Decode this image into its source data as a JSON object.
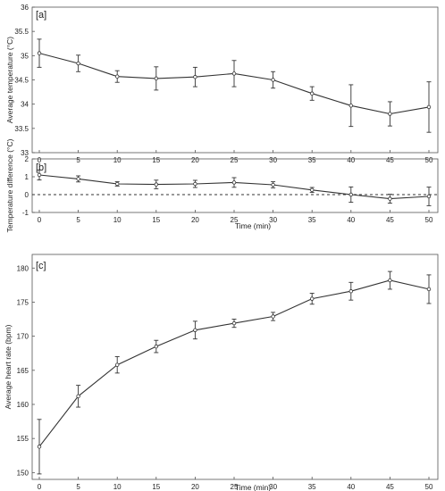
{
  "chart_data": [
    {
      "type": "line",
      "panel_label": "[a]",
      "xlabel": "",
      "ylabel": "Average temperature (°C)",
      "xlim": [
        0,
        50
      ],
      "ylim": [
        33,
        36
      ],
      "xticks": [
        0,
        5,
        10,
        15,
        20,
        25,
        30,
        35,
        40,
        45,
        50
      ],
      "yticks": [
        33,
        33.5,
        34,
        34.5,
        35,
        35.5,
        36
      ],
      "ytick_labels": [
        "33",
        "33.5",
        "34",
        "34.5",
        "35",
        "35.5",
        "36"
      ],
      "x": [
        0,
        5,
        10,
        15,
        20,
        25,
        30,
        35,
        40,
        45,
        50
      ],
      "values": [
        35.05,
        34.84,
        34.57,
        34.53,
        34.56,
        34.63,
        34.5,
        34.22,
        33.97,
        33.8,
        33.94
      ],
      "error": [
        0.29,
        0.17,
        0.12,
        0.24,
        0.2,
        0.27,
        0.17,
        0.14,
        0.43,
        0.25,
        0.52
      ],
      "grid": false,
      "legend": "none"
    },
    {
      "type": "line",
      "panel_label": "[b]",
      "xlabel": "Time (min)",
      "ylabel": "Temperature difference (°C)",
      "xlim": [
        0,
        50
      ],
      "ylim": [
        -1,
        2
      ],
      "xticks": [
        0,
        5,
        10,
        15,
        20,
        25,
        30,
        35,
        40,
        45,
        50
      ],
      "yticks": [
        -1,
        0,
        1,
        2
      ],
      "ytick_labels": [
        "-1",
        "0",
        "1",
        "2"
      ],
      "x": [
        0,
        5,
        10,
        15,
        20,
        25,
        30,
        35,
        40,
        45,
        50
      ],
      "values": [
        1.1,
        0.88,
        0.6,
        0.57,
        0.6,
        0.68,
        0.55,
        0.26,
        0.0,
        -0.23,
        -0.1
      ],
      "error": [
        0.28,
        0.17,
        0.12,
        0.24,
        0.2,
        0.27,
        0.17,
        0.14,
        0.43,
        0.25,
        0.52
      ],
      "reference_line": 0,
      "grid": false,
      "legend": "none"
    },
    {
      "type": "line",
      "panel_label": "[c]",
      "xlabel": "Time (min)",
      "ylabel": "Average heart rate (bpm)",
      "xlim": [
        0,
        50
      ],
      "ylim": [
        149,
        182
      ],
      "xticks": [
        0,
        5,
        10,
        15,
        20,
        25,
        30,
        35,
        40,
        45,
        50
      ],
      "yticks": [
        150,
        155,
        160,
        165,
        170,
        175,
        180
      ],
      "ytick_labels": [
        "150",
        "155",
        "160",
        "165",
        "170",
        "175",
        "180"
      ],
      "x": [
        0,
        5,
        10,
        15,
        20,
        25,
        30,
        35,
        40,
        45,
        50
      ],
      "values": [
        153.8,
        161.2,
        165.8,
        168.5,
        170.9,
        171.9,
        172.9,
        175.5,
        176.6,
        178.2,
        176.9
      ],
      "error": [
        4.0,
        1.6,
        1.2,
        0.9,
        1.3,
        0.6,
        0.6,
        0.8,
        1.3,
        1.3,
        2.1
      ],
      "grid": false,
      "legend": "none"
    }
  ]
}
